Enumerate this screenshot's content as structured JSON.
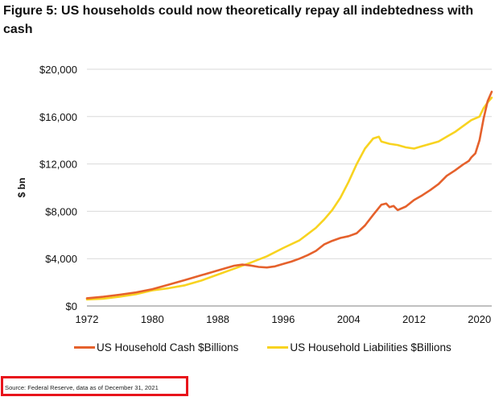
{
  "title": "Figure 5: US households could now theoretically repay all indebtedness with cash",
  "source": "Source: Federal Reserve, data as of December 31, 2021",
  "colors": {
    "cash": "#e5612c",
    "liabilities": "#f8d320",
    "axis": "#9a9a9a",
    "grid": "#d9d9d9"
  },
  "chart_data": {
    "type": "line",
    "title": "Figure 5: US households could now theoretically repay all indebtedness with cash",
    "xlabel": "",
    "ylabel": "$ bn",
    "xlim": [
      1972,
      2021.5
    ],
    "ylim": [
      0,
      20000
    ],
    "x_ticks": [
      1972,
      1980,
      1988,
      1996,
      2004,
      2012,
      2020
    ],
    "x_tick_labels": [
      "1972",
      "1980",
      "1988",
      "1996",
      "2004",
      "2012",
      "2020"
    ],
    "y_ticks": [
      0,
      4000,
      8000,
      12000,
      16000,
      20000
    ],
    "y_tick_labels": [
      "$0",
      "$4,000",
      "$8,000",
      "$12,000",
      "$16,000",
      "$20,000"
    ],
    "grid": "horizontal",
    "legend_position": "bottom",
    "series": [
      {
        "name": "US Household Cash $Billions",
        "color": "#e5612c",
        "points": [
          [
            1972,
            650
          ],
          [
            1974,
            780
          ],
          [
            1976,
            950
          ],
          [
            1978,
            1150
          ],
          [
            1980,
            1420
          ],
          [
            1982,
            1800
          ],
          [
            1984,
            2200
          ],
          [
            1986,
            2600
          ],
          [
            1988,
            3000
          ],
          [
            1990,
            3400
          ],
          [
            1991,
            3500
          ],
          [
            1992,
            3420
          ],
          [
            1993,
            3300
          ],
          [
            1994,
            3250
          ],
          [
            1995,
            3350
          ],
          [
            1996,
            3550
          ],
          [
            1997,
            3750
          ],
          [
            1998,
            4000
          ],
          [
            1999,
            4300
          ],
          [
            2000,
            4650
          ],
          [
            2001,
            5200
          ],
          [
            2002,
            5500
          ],
          [
            2003,
            5750
          ],
          [
            2004,
            5900
          ],
          [
            2005,
            6150
          ],
          [
            2006,
            6800
          ],
          [
            2007,
            7700
          ],
          [
            2008,
            8550
          ],
          [
            2008.6,
            8650
          ],
          [
            2009,
            8350
          ],
          [
            2009.5,
            8450
          ],
          [
            2010,
            8100
          ],
          [
            2011,
            8400
          ],
          [
            2012,
            8950
          ],
          [
            2013,
            9350
          ],
          [
            2014,
            9800
          ],
          [
            2015,
            10300
          ],
          [
            2016,
            11000
          ],
          [
            2017,
            11450
          ],
          [
            2018,
            11950
          ],
          [
            2018.7,
            12250
          ],
          [
            2019,
            12550
          ],
          [
            2019.5,
            12900
          ],
          [
            2020,
            14000
          ],
          [
            2020.5,
            15800
          ],
          [
            2021,
            17300
          ],
          [
            2021.5,
            18100
          ]
        ]
      },
      {
        "name": "US Household Liabilities $Billions",
        "color": "#f8d320",
        "points": [
          [
            1972,
            550
          ],
          [
            1974,
            620
          ],
          [
            1976,
            780
          ],
          [
            1978,
            1000
          ],
          [
            1980,
            1320
          ],
          [
            1982,
            1500
          ],
          [
            1984,
            1750
          ],
          [
            1986,
            2150
          ],
          [
            1988,
            2650
          ],
          [
            1990,
            3150
          ],
          [
            1992,
            3650
          ],
          [
            1994,
            4200
          ],
          [
            1996,
            4900
          ],
          [
            1998,
            5550
          ],
          [
            2000,
            6600
          ],
          [
            2001,
            7300
          ],
          [
            2002,
            8100
          ],
          [
            2003,
            9150
          ],
          [
            2004,
            10500
          ],
          [
            2005,
            12000
          ],
          [
            2006,
            13300
          ],
          [
            2007,
            14150
          ],
          [
            2007.7,
            14300
          ],
          [
            2008,
            13900
          ],
          [
            2009,
            13700
          ],
          [
            2010,
            13600
          ],
          [
            2011,
            13400
          ],
          [
            2012,
            13300
          ],
          [
            2013,
            13500
          ],
          [
            2014,
            13700
          ],
          [
            2015,
            13900
          ],
          [
            2016,
            14300
          ],
          [
            2017,
            14700
          ],
          [
            2018,
            15200
          ],
          [
            2019,
            15700
          ],
          [
            2020,
            16000
          ],
          [
            2020.5,
            16700
          ],
          [
            2021,
            17200
          ],
          [
            2021.5,
            17600
          ]
        ]
      }
    ]
  }
}
